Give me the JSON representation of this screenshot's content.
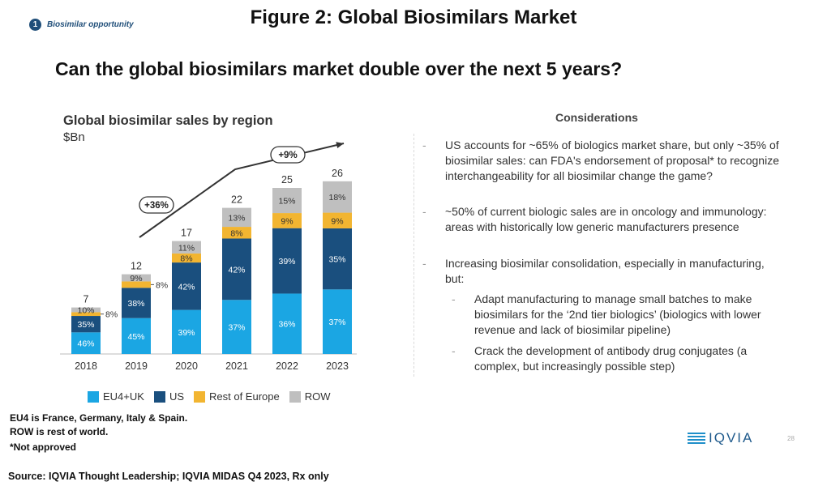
{
  "header": {
    "badge_number": "1",
    "badge_text": "Biosimilar opportunity",
    "figure_title": "Figure 2: Global Biosimilars Market",
    "headline": "Can the global biosimilars market double over the next 5 years?"
  },
  "chart_data": {
    "type": "bar",
    "stacked": true,
    "title": "Global biosimilar sales by region",
    "subtitle": "$Bn",
    "categories": [
      "2018",
      "2019",
      "2020",
      "2021",
      "2022",
      "2023"
    ],
    "totals": [
      7,
      12,
      17,
      22,
      25,
      26
    ],
    "ylim": [
      0,
      30
    ],
    "series": [
      {
        "name": "EU4+UK",
        "color": "#1ba6e3",
        "percent": [
          46,
          45,
          39,
          37,
          36,
          37
        ],
        "labels": [
          "46%",
          "45%",
          "39%",
          "37%",
          "36%",
          "37%"
        ]
      },
      {
        "name": "US",
        "color": "#1a4f7e",
        "percent": [
          35,
          38,
          42,
          42,
          39,
          35
        ],
        "labels": [
          "35%",
          "38%",
          "42%",
          "42%",
          "39%",
          "35%"
        ]
      },
      {
        "name": "Rest of Europe",
        "color": "#f2b531",
        "percent": [
          8,
          8,
          8,
          8,
          9,
          9
        ],
        "labels": [
          "8%",
          "8%",
          "8%",
          "8%",
          "9%",
          "9%"
        ]
      },
      {
        "name": "ROW",
        "color": "#bfbfbf",
        "percent": [
          10,
          9,
          11,
          13,
          15,
          18
        ],
        "labels": [
          "10%",
          "9%",
          "11%",
          "13%",
          "15%",
          "18%"
        ]
      }
    ],
    "growth_annotations": [
      "+36%",
      "+9%"
    ],
    "legend": "bottom",
    "grid": false
  },
  "considerations": {
    "title": "Considerations",
    "items": [
      "US accounts for ~65% of biologics market share, but only ~35% of biosimilar sales: can FDA's endorsement of proposal* to recognize interchangeability for all biosimilar change the game?",
      "~50% of current biologic sales are in oncology and immunology: areas with historically low generic manufacturers presence",
      "Increasing biosimilar consolidation, especially in manufacturing, but:"
    ],
    "subitems": [
      "Adapt manufacturing to manage small batches to make biosimilars for the ‘2nd tier biologics’ (biologics with lower revenue and lack of biosimilar pipeline)",
      "Crack the development of antibody drug conjugates (a complex, but increasingly possible step)"
    ]
  },
  "footer": {
    "note_eu4": "EU4 is France, Germany, Italy & Spain.",
    "note_row": "ROW is rest of world.",
    "not_approved": "*Not approved",
    "source": "Source: IQVIA Thought Leadership; IQVIA MIDAS Q4 2023, Rx only",
    "logo_text": "IQVIA",
    "page_number": "28"
  }
}
